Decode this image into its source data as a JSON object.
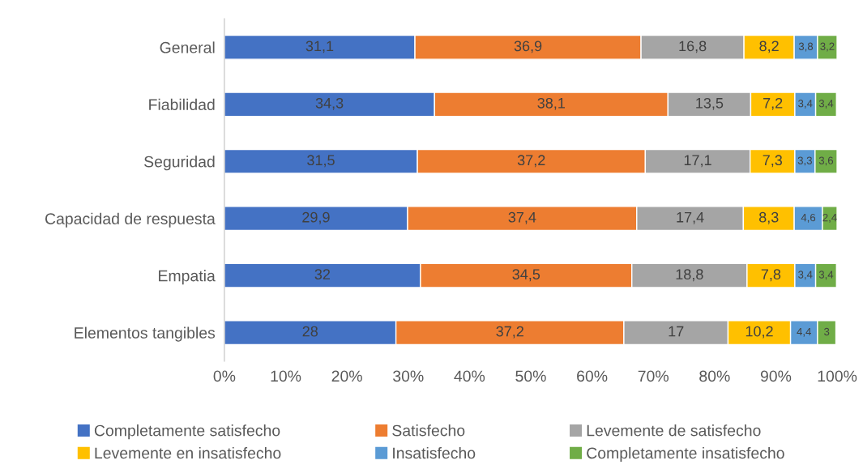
{
  "chart_data": {
    "type": "bar",
    "orientation": "horizontal",
    "stacked": true,
    "categories": [
      "General",
      "Fiabilidad",
      "Seguridad",
      "Capacidad de respuesta",
      "Empatia",
      "Elementos tangibles"
    ],
    "series": [
      {
        "name": "Completamente satisfecho",
        "color": "#4472c4",
        "values": [
          31.1,
          34.3,
          31.5,
          29.9,
          32,
          28
        ],
        "value_labels": [
          "31,1",
          "34,3",
          "31,5",
          "29,9",
          "32",
          "28"
        ]
      },
      {
        "name": "Satisfecho",
        "color": "#ed7d31",
        "values": [
          36.9,
          38.1,
          37.2,
          37.4,
          34.5,
          37.2
        ],
        "value_labels": [
          "36,9",
          "38,1",
          "37,2",
          "37,4",
          "34,5",
          "37,2"
        ]
      },
      {
        "name": "Levemente de satisfecho",
        "color": "#a5a5a5",
        "values": [
          16.8,
          13.5,
          17.1,
          17.4,
          18.8,
          17
        ],
        "value_labels": [
          "16,8",
          "13,5",
          "17,1",
          "17,4",
          "18,8",
          "17"
        ]
      },
      {
        "name": "Levemente en insatisfecho",
        "color": "#ffc000",
        "values": [
          8.2,
          7.2,
          7.3,
          8.3,
          7.8,
          10.2
        ],
        "value_labels": [
          "8,2",
          "7,2",
          "7,3",
          "8,3",
          "7,8",
          "10,2"
        ]
      },
      {
        "name": "Insatisfecho",
        "color": "#5b9bd5",
        "values": [
          3.8,
          3.4,
          3.3,
          4.6,
          3.4,
          4.4
        ],
        "value_labels": [
          "3,8",
          "3,4",
          "3,3",
          "4,6",
          "3,4",
          "4,4"
        ]
      },
      {
        "name": "Completamente insatisfecho",
        "color": "#70ad47",
        "values": [
          3.2,
          3.4,
          3.6,
          2.4,
          3.4,
          3
        ],
        "value_labels": [
          "3,2",
          "3,4",
          "3,6",
          "2,4",
          "3,4",
          "3"
        ]
      }
    ],
    "xlim": [
      0,
      100
    ],
    "xticks": [
      {
        "value": 0,
        "label": "0%"
      },
      {
        "value": 10,
        "label": "10%"
      },
      {
        "value": 20,
        "label": "20%"
      },
      {
        "value": 30,
        "label": "30%"
      },
      {
        "value": 40,
        "label": "40%"
      },
      {
        "value": 50,
        "label": "50%"
      },
      {
        "value": 60,
        "label": "60%"
      },
      {
        "value": 70,
        "label": "70%"
      },
      {
        "value": 80,
        "label": "80%"
      },
      {
        "value": 90,
        "label": "90%"
      },
      {
        "value": 100,
        "label": "100%"
      }
    ],
    "grid": false,
    "legend": "bottom"
  }
}
